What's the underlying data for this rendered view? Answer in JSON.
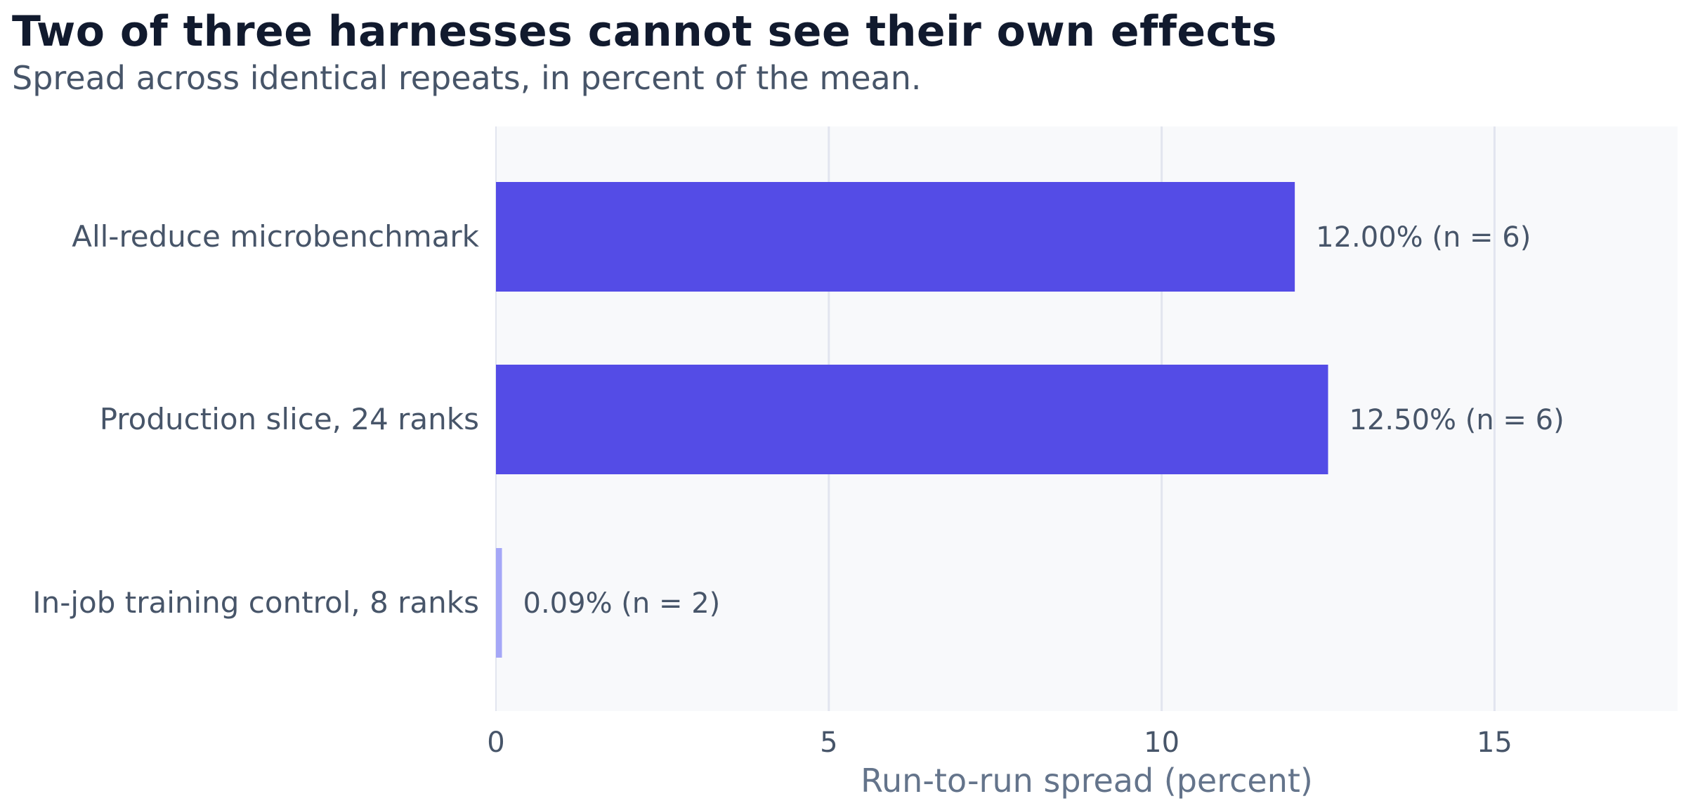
{
  "chart_data": {
    "type": "bar",
    "orientation": "horizontal",
    "title": "Two of three harnesses cannot see their own effects",
    "subtitle": "Spread across identical repeats, in percent of the mean.",
    "xlabel": "Run-to-run spread (percent)",
    "ylabel": "",
    "xlim": [
      0,
      17.75
    ],
    "xticks": [
      0,
      5,
      10,
      15
    ],
    "grid": "vertical",
    "categories": [
      "All-reduce microbenchmark",
      "Production slice, 24 ranks",
      "In-job training control, 8 ranks"
    ],
    "values": [
      12.0,
      12.5,
      0.09
    ],
    "value_labels": [
      "12.00%  (n = 6)",
      "12.50%  (n = 6)",
      "0.09%  (n = 2)"
    ],
    "bar_colors": [
      "#544ce6",
      "#544ce6",
      "#a5a7f7"
    ]
  },
  "colors": {
    "title": "#111a2e",
    "text": "#475569",
    "axis_label": "#64748b",
    "plot_background": "#f8f9fb",
    "grid": "#e2e5ef"
  }
}
